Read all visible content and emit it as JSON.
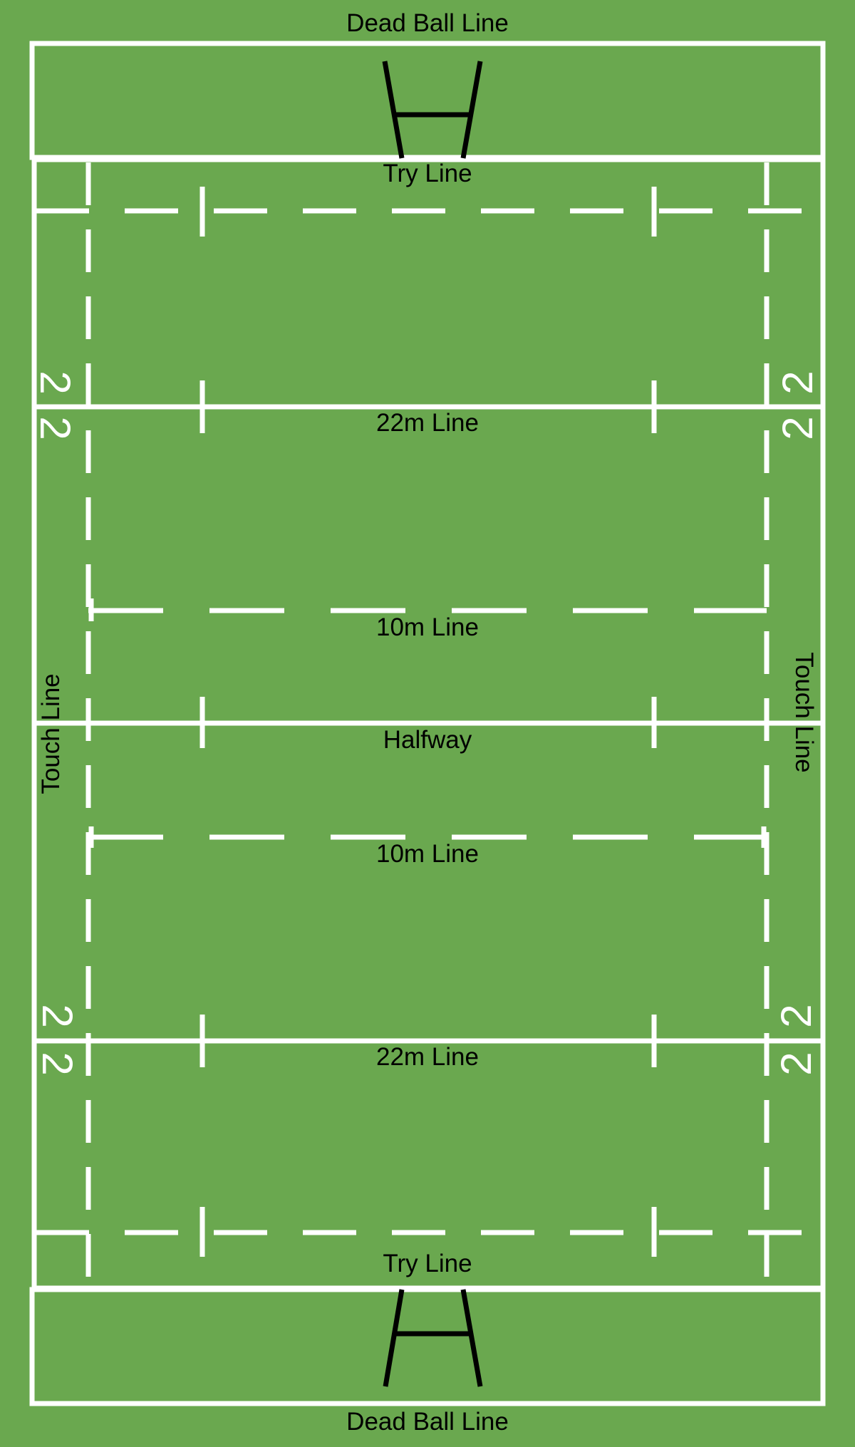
{
  "colors": {
    "grass": "#6aa84f",
    "line": "#ffffff",
    "posts": "#000000",
    "text": "#000000"
  },
  "labels": {
    "dead_ball_top": "Dead Ball Line",
    "try_top": "Try Line",
    "twenty_two_top": "22m Line",
    "ten_top": "10m Line",
    "halfway": "Halfway",
    "ten_bottom": "10m Line",
    "twenty_two_bottom": "22m Line",
    "try_bottom": "Try Line",
    "dead_ball_bottom": "Dead Ball Line",
    "touch_left": "Touch Line",
    "touch_right": "Touch Line"
  },
  "markers": {
    "twenty_two_digit": "2"
  }
}
